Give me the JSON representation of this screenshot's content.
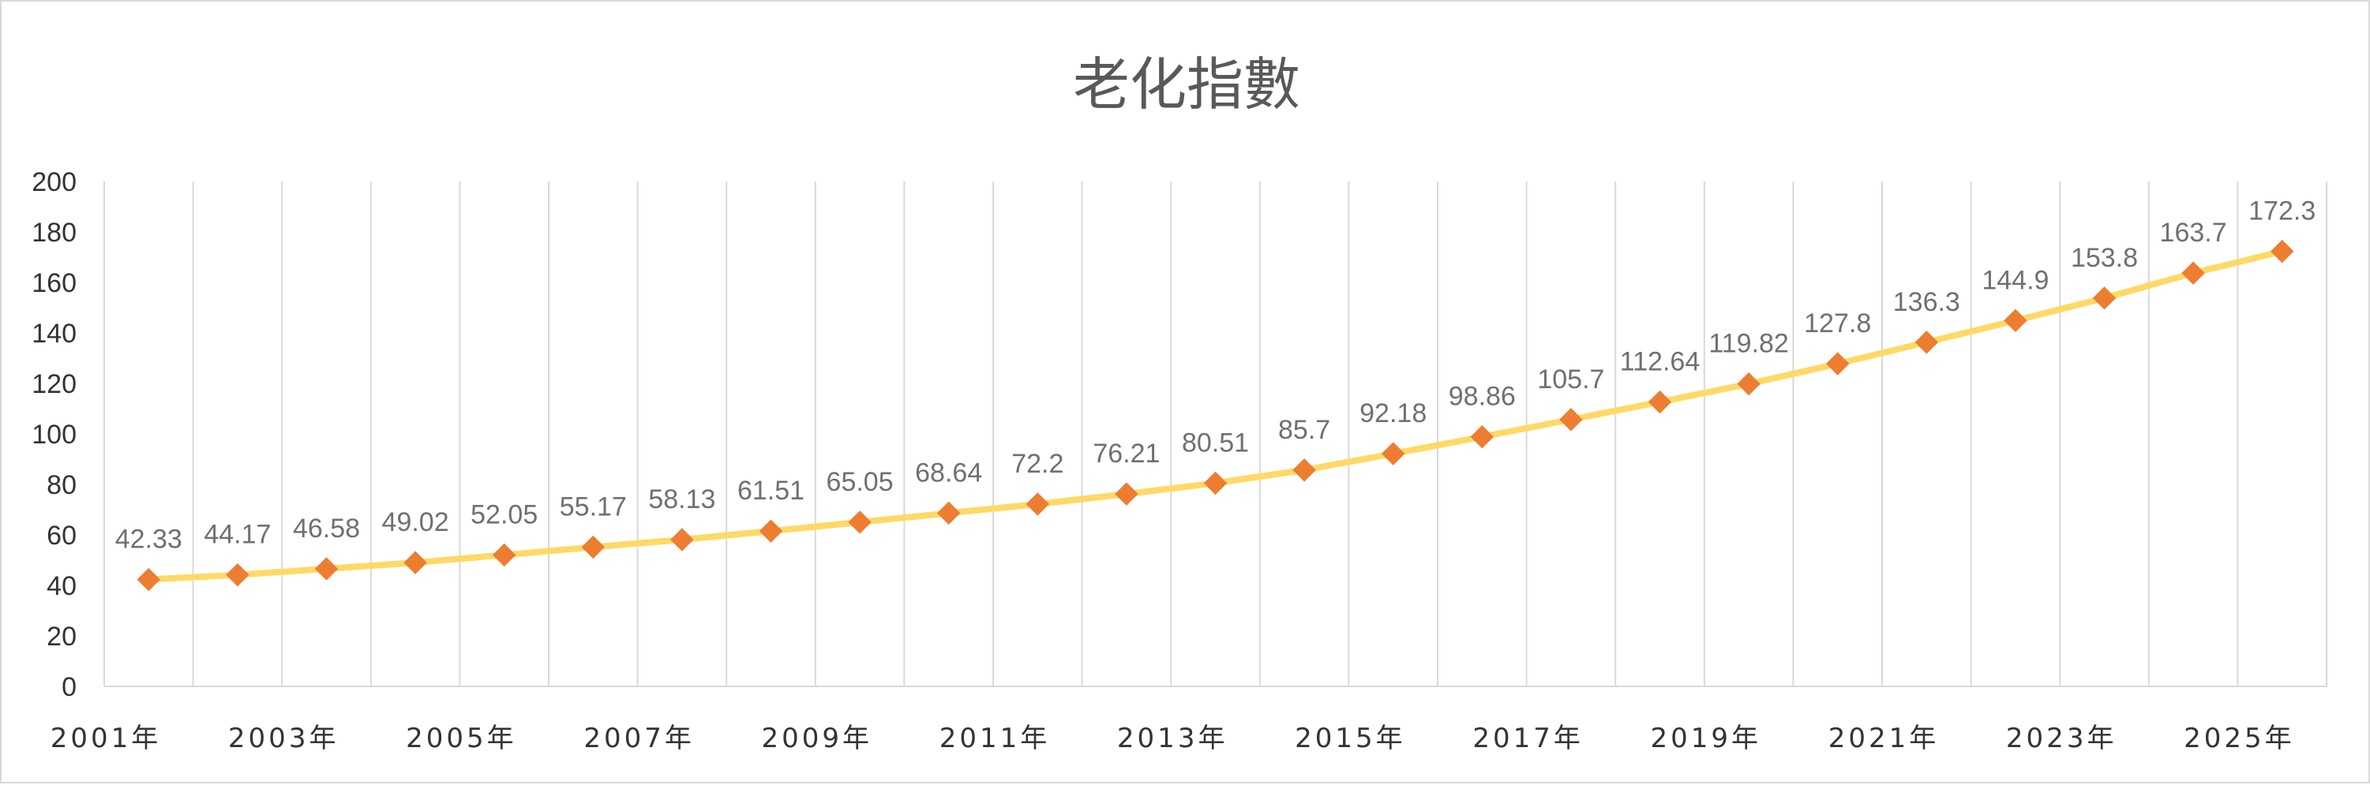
{
  "chart_data": {
    "type": "line",
    "title": "老化指數",
    "xlabel": "",
    "ylabel": "",
    "ylim": [
      0,
      200
    ],
    "ytick_step": 20,
    "grid": "vertical",
    "legend": "none",
    "x": [
      "2001年",
      "2002年",
      "2003年",
      "2004年",
      "2005年",
      "2006年",
      "2007年",
      "2008年",
      "2009年",
      "2010年",
      "2011年",
      "2012年",
      "2013年",
      "2014年",
      "2015年",
      "2016年",
      "2017年",
      "2018年",
      "2019年",
      "2020年",
      "2021年",
      "2022年",
      "2023年",
      "2024年",
      "2025年"
    ],
    "x_tick_labels": [
      "2001年",
      "2003年",
      "2005年",
      "2007年",
      "2009年",
      "2011年",
      "2013年",
      "2015年",
      "2017年",
      "2019年",
      "2021年",
      "2023年",
      "2025年"
    ],
    "y_tick_labels": [
      "0",
      "20",
      "40",
      "60",
      "80",
      "100",
      "120",
      "140",
      "160",
      "180",
      "200"
    ],
    "series": [
      {
        "values": [
          42.33,
          44.17,
          46.58,
          49.02,
          52.05,
          55.17,
          58.13,
          61.51,
          65.05,
          68.64,
          72.2,
          76.21,
          80.51,
          85.7,
          92.18,
          98.86,
          105.7,
          112.64,
          119.82,
          127.8,
          136.3,
          144.9,
          153.8,
          163.7,
          172.3
        ],
        "labels": [
          "42.33",
          "44.17",
          "46.58",
          "49.02",
          "52.05",
          "55.17",
          "58.13",
          "61.51",
          "65.05",
          "68.64",
          "72.2",
          "76.21",
          "80.51",
          "85.7",
          "92.18",
          "98.86",
          "105.7",
          "112.64",
          "119.82",
          "127.8",
          "136.3",
          "144.9",
          "153.8",
          "163.7",
          "172.3"
        ],
        "line_color": "#FFD966",
        "marker_color": "#ED7D31",
        "marker": "diamond"
      }
    ],
    "grid_color": "#d9d9d9"
  }
}
